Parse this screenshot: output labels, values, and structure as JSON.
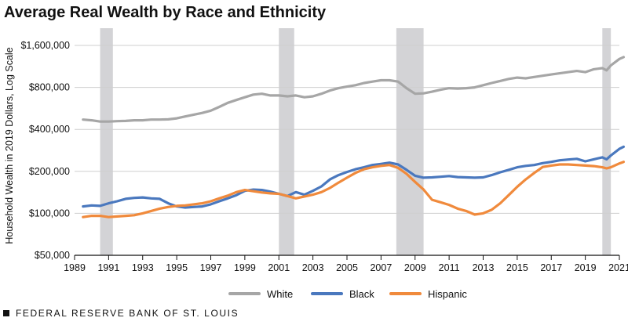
{
  "chart_data": {
    "type": "line",
    "title": "Average Real Wealth by Race and Ethnicity",
    "xlabel": "",
    "ylabel": "Household Wealth in 2019 Dollars, Log Scale",
    "y_scale": "log",
    "xlim": [
      1989,
      2021
    ],
    "ylim": [
      50000,
      1600000
    ],
    "x_ticks": [
      "1989",
      "1991",
      "1993",
      "1995",
      "1997",
      "1999",
      "2001",
      "2003",
      "2005",
      "2007",
      "2009",
      "2011",
      "2013",
      "2015",
      "2017",
      "2019",
      "2021"
    ],
    "y_ticks": [
      {
        "value": 50000,
        "label": "$50,000"
      },
      {
        "value": 100000,
        "label": "$100,000"
      },
      {
        "value": 200000,
        "label": "$200,000"
      },
      {
        "value": 400000,
        "label": "$400,000"
      },
      {
        "value": 800000,
        "label": "$800,000"
      },
      {
        "value": 1600000,
        "label": "$1,600,000"
      }
    ],
    "grid": "horizontal",
    "legend_position": "bottom",
    "recessions": [
      [
        1990.5,
        1991.25
      ],
      [
        2001.0,
        2001.9
      ],
      [
        2007.9,
        2009.5
      ],
      [
        2020.0,
        2020.5
      ]
    ],
    "series": [
      {
        "name": "White",
        "color": "#a6a6a6",
        "x": [
          1989.5,
          1990,
          1990.5,
          1991,
          1991.5,
          1992,
          1992.5,
          1993,
          1993.5,
          1994,
          1994.5,
          1995,
          1995.5,
          1996,
          1996.5,
          1997,
          1997.5,
          1998,
          1998.5,
          1999,
          1999.5,
          2000,
          2000.5,
          2001,
          2001.5,
          2002,
          2002.5,
          2003,
          2003.5,
          2004,
          2004.5,
          2005,
          2005.5,
          2006,
          2006.5,
          2007,
          2007.5,
          2008,
          2008.5,
          2009,
          2009.5,
          2010,
          2010.5,
          2011,
          2011.5,
          2012,
          2012.5,
          2013,
          2013.5,
          2014,
          2014.5,
          2015,
          2015.5,
          2016,
          2016.5,
          2017,
          2017.5,
          2018,
          2018.5,
          2019,
          2019.5,
          2020,
          2020.25,
          2020.5,
          2021,
          2021.25
        ],
        "y": [
          470000,
          465000,
          455000,
          455000,
          458000,
          460000,
          465000,
          465000,
          470000,
          470000,
          472000,
          480000,
          495000,
          510000,
          525000,
          545000,
          580000,
          620000,
          650000,
          680000,
          710000,
          720000,
          700000,
          700000,
          690000,
          700000,
          680000,
          690000,
          720000,
          760000,
          790000,
          810000,
          830000,
          860000,
          880000,
          900000,
          900000,
          880000,
          790000,
          720000,
          725000,
          745000,
          770000,
          790000,
          785000,
          790000,
          800000,
          830000,
          860000,
          890000,
          920000,
          940000,
          930000,
          950000,
          970000,
          990000,
          1010000,
          1030000,
          1050000,
          1030000,
          1080000,
          1100000,
          1060000,
          1150000,
          1280000,
          1320000
        ]
      },
      {
        "name": "Black",
        "color": "#4a78be",
        "x": [
          1989.5,
          1990,
          1990.5,
          1991,
          1991.5,
          1992,
          1992.5,
          1993,
          1993.5,
          1994,
          1994.5,
          1995,
          1995.5,
          1996,
          1996.5,
          1997,
          1997.5,
          1998,
          1998.5,
          1999,
          1999.5,
          2000,
          2000.5,
          2001,
          2001.5,
          2002,
          2002.5,
          2003,
          2003.5,
          2004,
          2004.5,
          2005,
          2005.5,
          2006,
          2006.5,
          2007,
          2007.5,
          2008,
          2008.5,
          2009,
          2009.5,
          2010,
          2010.5,
          2011,
          2011.5,
          2012,
          2012.5,
          2013,
          2013.5,
          2014,
          2014.5,
          2015,
          2015.5,
          2016,
          2016.5,
          2017,
          2017.5,
          2018,
          2018.5,
          2019,
          2019.5,
          2020,
          2020.25,
          2020.5,
          2021,
          2021.25
        ],
        "y": [
          112000,
          114000,
          113000,
          118000,
          122000,
          127000,
          129000,
          130000,
          128000,
          127000,
          118000,
          112000,
          110000,
          111000,
          112000,
          116000,
          122000,
          128000,
          135000,
          145000,
          148000,
          147000,
          143000,
          138000,
          133000,
          142000,
          136000,
          145000,
          156000,
          175000,
          188000,
          198000,
          207000,
          214000,
          222000,
          226000,
          231000,
          224000,
          205000,
          186000,
          180000,
          181000,
          183000,
          185000,
          182000,
          181000,
          180000,
          181000,
          188000,
          197000,
          205000,
          214000,
          219000,
          222000,
          229000,
          234000,
          240000,
          243000,
          246000,
          236000,
          244000,
          252000,
          244000,
          260000,
          290000,
          300000
        ]
      },
      {
        "name": "Hispanic",
        "color": "#f08a3c",
        "x": [
          1989.5,
          1990,
          1990.5,
          1991,
          1991.5,
          1992,
          1992.5,
          1993,
          1993.5,
          1994,
          1994.5,
          1995,
          1995.5,
          1996,
          1996.5,
          1997,
          1997.5,
          1998,
          1998.5,
          1999,
          1999.5,
          2000,
          2000.5,
          2001,
          2001.5,
          2002,
          2002.5,
          2003,
          2003.5,
          2004,
          2004.5,
          2005,
          2005.5,
          2006,
          2006.5,
          2007,
          2007.5,
          2008,
          2008.5,
          2009,
          2009.5,
          2010,
          2010.5,
          2011,
          2011.5,
          2012,
          2012.5,
          2013,
          2013.5,
          2014,
          2014.5,
          2015,
          2015.5,
          2016,
          2016.5,
          2017,
          2017.5,
          2018,
          2018.5,
          2019,
          2019.5,
          2020,
          2020.25,
          2020.5,
          2021,
          2021.25
        ],
        "y": [
          94000,
          96000,
          96000,
          94000,
          95000,
          96000,
          97000,
          100000,
          104000,
          108000,
          111000,
          113000,
          114000,
          116000,
          118000,
          122000,
          128000,
          134000,
          142000,
          147000,
          144000,
          141000,
          139000,
          138000,
          133000,
          128000,
          132000,
          136000,
          142000,
          152000,
          166000,
          180000,
          195000,
          207000,
          214000,
          219000,
          222000,
          212000,
          192000,
          168000,
          148000,
          125000,
          120000,
          115000,
          108000,
          104000,
          98000,
          100000,
          106000,
          118000,
          135000,
          155000,
          175000,
          195000,
          215000,
          220000,
          224000,
          224000,
          222000,
          220000,
          218000,
          214000,
          210000,
          214000,
          228000,
          234000
        ]
      }
    ]
  },
  "legend": [
    {
      "label": "White",
      "color": "#a6a6a6"
    },
    {
      "label": "Black",
      "color": "#4a78be"
    },
    {
      "label": "Hispanic",
      "color": "#f08a3c"
    }
  ],
  "footer": {
    "text": "FEDERAL RESERVE BANK OF ST. LOUIS"
  }
}
